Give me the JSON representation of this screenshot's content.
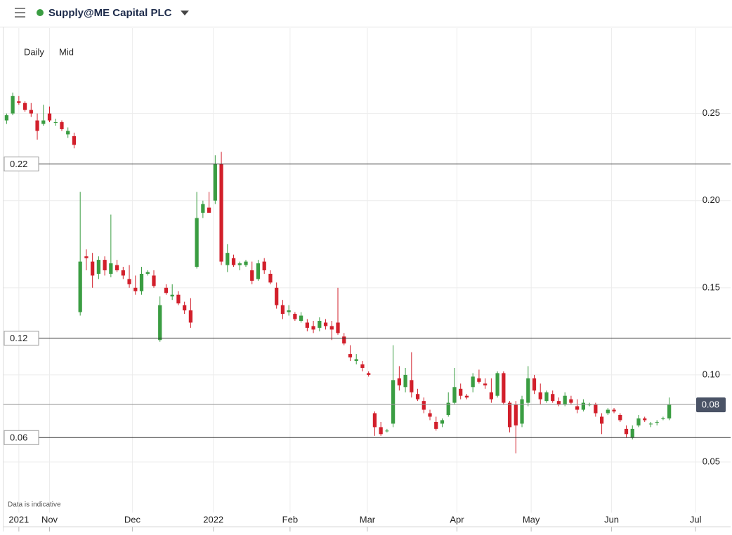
{
  "header": {
    "title": "Supply@ME Capital PLC"
  },
  "toolbar": {
    "interval": "Daily",
    "price_type": "Mid"
  },
  "chart_data": {
    "type": "candlestick",
    "note": "Data is indicative",
    "up_color": "#3a9d42",
    "down_color": "#d21f2b",
    "xlim": [
      -0.5,
      118
    ],
    "xticks": [
      {
        "value": 2,
        "label": "2021"
      },
      {
        "value": 7,
        "label": "Nov"
      },
      {
        "value": 20.5,
        "label": "Dec"
      },
      {
        "value": 33.7,
        "label": "2022"
      },
      {
        "value": 46.2,
        "label": "Feb"
      },
      {
        "value": 58.8,
        "label": "Mar"
      },
      {
        "value": 73.4,
        "label": "Apr"
      },
      {
        "value": 85.5,
        "label": "May"
      },
      {
        "value": 98.6,
        "label": "Jun"
      },
      {
        "value": 112.3,
        "label": "Jul"
      }
    ],
    "ylim": [
      0.021,
      0.299
    ],
    "yticks": [
      0.05,
      {
        "value": 0.1,
        "label": "0.10"
      },
      0.15,
      {
        "value": 0.2,
        "label": "0.20"
      },
      0.25
    ],
    "grid": true,
    "levels": [
      {
        "value": 0.221,
        "label": "0.22"
      },
      {
        "value": 0.121,
        "label": "0.12"
      },
      {
        "value": 0.064,
        "label": "0.06"
      }
    ],
    "last_price": {
      "value": 0.083,
      "label": "0.08"
    },
    "candles": [
      {
        "open": 0.246,
        "high": 0.25,
        "low": 0.244,
        "close": 0.249
      },
      {
        "open": 0.25,
        "high": 0.262,
        "low": 0.249,
        "close": 0.26
      },
      {
        "open": 0.257,
        "high": 0.26,
        "low": 0.255,
        "close": 0.256
      },
      {
        "open": 0.256,
        "high": 0.257,
        "low": 0.251,
        "close": 0.252
      },
      {
        "open": 0.252,
        "high": 0.256,
        "low": 0.248,
        "close": 0.25
      },
      {
        "open": 0.246,
        "high": 0.25,
        "low": 0.235,
        "close": 0.24
      },
      {
        "open": 0.244,
        "high": 0.255,
        "low": 0.243,
        "close": 0.246
      },
      {
        "open": 0.25,
        "high": 0.254,
        "low": 0.245,
        "close": 0.246
      },
      {
        "open": 0.245,
        "high": 0.247,
        "low": 0.243,
        "close": 0.245
      },
      {
        "open": 0.245,
        "high": 0.246,
        "low": 0.24,
        "close": 0.241
      },
      {
        "open": 0.238,
        "high": 0.242,
        "low": 0.236,
        "close": 0.24
      },
      {
        "open": 0.237,
        "high": 0.239,
        "low": 0.23,
        "close": 0.232
      },
      {
        "open": 0.136,
        "high": 0.205,
        "low": 0.134,
        "close": 0.165
      },
      {
        "open": 0.168,
        "high": 0.172,
        "low": 0.16,
        "close": 0.167
      },
      {
        "open": 0.165,
        "high": 0.17,
        "low": 0.15,
        "close": 0.157
      },
      {
        "open": 0.158,
        "high": 0.168,
        "low": 0.155,
        "close": 0.166
      },
      {
        "open": 0.166,
        "high": 0.168,
        "low": 0.157,
        "close": 0.16
      },
      {
        "open": 0.158,
        "high": 0.192,
        "low": 0.156,
        "close": 0.164
      },
      {
        "open": 0.163,
        "high": 0.166,
        "low": 0.159,
        "close": 0.16
      },
      {
        "open": 0.16,
        "high": 0.162,
        "low": 0.155,
        "close": 0.157
      },
      {
        "open": 0.155,
        "high": 0.163,
        "low": 0.15,
        "close": 0.152
      },
      {
        "open": 0.15,
        "high": 0.157,
        "low": 0.146,
        "close": 0.148
      },
      {
        "open": 0.148,
        "high": 0.162,
        "low": 0.146,
        "close": 0.158
      },
      {
        "open": 0.158,
        "high": 0.16,
        "low": 0.157,
        "close": 0.159
      },
      {
        "open": 0.157,
        "high": 0.16,
        "low": 0.15,
        "close": 0.151
      },
      {
        "open": 0.12,
        "high": 0.145,
        "low": 0.119,
        "close": 0.14
      },
      {
        "open": 0.15,
        "high": 0.152,
        "low": 0.146,
        "close": 0.147
      },
      {
        "open": 0.145,
        "high": 0.152,
        "low": 0.143,
        "close": 0.146
      },
      {
        "open": 0.146,
        "high": 0.148,
        "low": 0.14,
        "close": 0.141
      },
      {
        "open": 0.14,
        "high": 0.142,
        "low": 0.135,
        "close": 0.137
      },
      {
        "open": 0.137,
        "high": 0.144,
        "low": 0.127,
        "close": 0.13
      },
      {
        "open": 0.162,
        "high": 0.205,
        "low": 0.161,
        "close": 0.19
      },
      {
        "open": 0.193,
        "high": 0.2,
        "low": 0.19,
        "close": 0.198
      },
      {
        "open": 0.196,
        "high": 0.205,
        "low": 0.193,
        "close": 0.193
      },
      {
        "open": 0.2,
        "high": 0.226,
        "low": 0.198,
        "close": 0.221
      },
      {
        "open": 0.221,
        "high": 0.228,
        "low": 0.163,
        "close": 0.165
      },
      {
        "open": 0.163,
        "high": 0.175,
        "low": 0.159,
        "close": 0.17
      },
      {
        "open": 0.167,
        "high": 0.169,
        "low": 0.162,
        "close": 0.163
      },
      {
        "open": 0.163,
        "high": 0.165,
        "low": 0.16,
        "close": 0.164
      },
      {
        "open": 0.163,
        "high": 0.166,
        "low": 0.162,
        "close": 0.165
      },
      {
        "open": 0.16,
        "high": 0.165,
        "low": 0.152,
        "close": 0.154
      },
      {
        "open": 0.155,
        "high": 0.166,
        "low": 0.154,
        "close": 0.164
      },
      {
        "open": 0.165,
        "high": 0.167,
        "low": 0.158,
        "close": 0.16
      },
      {
        "open": 0.158,
        "high": 0.16,
        "low": 0.152,
        "close": 0.153
      },
      {
        "open": 0.15,
        "high": 0.153,
        "low": 0.138,
        "close": 0.14
      },
      {
        "open": 0.14,
        "high": 0.143,
        "low": 0.132,
        "close": 0.135
      },
      {
        "open": 0.136,
        "high": 0.14,
        "low": 0.134,
        "close": 0.137
      },
      {
        "open": 0.135,
        "high": 0.136,
        "low": 0.131,
        "close": 0.132
      },
      {
        "open": 0.131,
        "high": 0.136,
        "low": 0.13,
        "close": 0.134
      },
      {
        "open": 0.13,
        "high": 0.132,
        "low": 0.125,
        "close": 0.127
      },
      {
        "open": 0.128,
        "high": 0.131,
        "low": 0.124,
        "close": 0.126
      },
      {
        "open": 0.127,
        "high": 0.133,
        "low": 0.125,
        "close": 0.131
      },
      {
        "open": 0.13,
        "high": 0.132,
        "low": 0.126,
        "close": 0.128
      },
      {
        "open": 0.128,
        "high": 0.131,
        "low": 0.12,
        "close": 0.126
      },
      {
        "open": 0.13,
        "high": 0.15,
        "low": 0.123,
        "close": 0.124
      },
      {
        "open": 0.122,
        "high": 0.124,
        "low": 0.117,
        "close": 0.118
      },
      {
        "open": 0.112,
        "high": 0.117,
        "low": 0.108,
        "close": 0.11
      },
      {
        "open": 0.108,
        "high": 0.112,
        "low": 0.106,
        "close": 0.109
      },
      {
        "open": 0.106,
        "high": 0.108,
        "low": 0.102,
        "close": 0.104
      },
      {
        "open": 0.101,
        "high": 0.102,
        "low": 0.099,
        "close": 0.1
      },
      {
        "open": 0.078,
        "high": 0.079,
        "low": 0.065,
        "close": 0.07
      },
      {
        "open": 0.07,
        "high": 0.073,
        "low": 0.065,
        "close": 0.066
      },
      {
        "open": 0.068,
        "high": 0.069,
        "low": 0.067,
        "close": 0.068
      },
      {
        "open": 0.072,
        "high": 0.117,
        "low": 0.07,
        "close": 0.097
      },
      {
        "open": 0.098,
        "high": 0.105,
        "low": 0.091,
        "close": 0.094
      },
      {
        "open": 0.093,
        "high": 0.104,
        "low": 0.09,
        "close": 0.1
      },
      {
        "open": 0.097,
        "high": 0.113,
        "low": 0.087,
        "close": 0.09
      },
      {
        "open": 0.089,
        "high": 0.092,
        "low": 0.085,
        "close": 0.086
      },
      {
        "open": 0.085,
        "high": 0.087,
        "low": 0.078,
        "close": 0.08
      },
      {
        "open": 0.078,
        "high": 0.08,
        "low": 0.074,
        "close": 0.076
      },
      {
        "open": 0.073,
        "high": 0.076,
        "low": 0.068,
        "close": 0.069
      },
      {
        "open": 0.072,
        "high": 0.075,
        "low": 0.07,
        "close": 0.074
      },
      {
        "open": 0.077,
        "high": 0.09,
        "low": 0.076,
        "close": 0.084
      },
      {
        "open": 0.084,
        "high": 0.104,
        "low": 0.083,
        "close": 0.093
      },
      {
        "open": 0.092,
        "high": 0.095,
        "low": 0.086,
        "close": 0.088
      },
      {
        "open": 0.088,
        "high": 0.089,
        "low": 0.086,
        "close": 0.087
      },
      {
        "open": 0.093,
        "high": 0.101,
        "low": 0.09,
        "close": 0.099
      },
      {
        "open": 0.098,
        "high": 0.103,
        "low": 0.095,
        "close": 0.096
      },
      {
        "open": 0.095,
        "high": 0.098,
        "low": 0.092,
        "close": 0.094
      },
      {
        "open": 0.09,
        "high": 0.098,
        "low": 0.084,
        "close": 0.086
      },
      {
        "open": 0.088,
        "high": 0.102,
        "low": 0.087,
        "close": 0.101
      },
      {
        "open": 0.101,
        "high": 0.102,
        "low": 0.083,
        "close": 0.084
      },
      {
        "open": 0.084,
        "high": 0.085,
        "low": 0.067,
        "close": 0.07
      },
      {
        "open": 0.083,
        "high": 0.085,
        "low": 0.055,
        "close": 0.071
      },
      {
        "open": 0.072,
        "high": 0.088,
        "low": 0.07,
        "close": 0.086
      },
      {
        "open": 0.084,
        "high": 0.105,
        "low": 0.082,
        "close": 0.098
      },
      {
        "open": 0.098,
        "high": 0.1,
        "low": 0.089,
        "close": 0.091
      },
      {
        "open": 0.09,
        "high": 0.095,
        "low": 0.083,
        "close": 0.086
      },
      {
        "open": 0.085,
        "high": 0.091,
        "low": 0.084,
        "close": 0.09
      },
      {
        "open": 0.089,
        "high": 0.091,
        "low": 0.084,
        "close": 0.085
      },
      {
        "open": 0.085,
        "high": 0.087,
        "low": 0.082,
        "close": 0.083
      },
      {
        "open": 0.083,
        "high": 0.09,
        "low": 0.082,
        "close": 0.088
      },
      {
        "open": 0.086,
        "high": 0.088,
        "low": 0.083,
        "close": 0.084
      },
      {
        "open": 0.082,
        "high": 0.086,
        "low": 0.078,
        "close": 0.08
      },
      {
        "open": 0.08,
        "high": 0.086,
        "low": 0.079,
        "close": 0.084
      },
      {
        "open": 0.083,
        "high": 0.084,
        "low": 0.082,
        "close": 0.083
      },
      {
        "open": 0.083,
        "high": 0.084,
        "low": 0.076,
        "close": 0.078
      },
      {
        "open": 0.076,
        "high": 0.078,
        "low": 0.066,
        "close": 0.072
      },
      {
        "open": 0.078,
        "high": 0.081,
        "low": 0.077,
        "close": 0.08
      },
      {
        "open": 0.08,
        "high": 0.081,
        "low": 0.078,
        "close": 0.079
      },
      {
        "open": 0.077,
        "high": 0.078,
        "low": 0.073,
        "close": 0.074
      },
      {
        "open": 0.069,
        "high": 0.071,
        "low": 0.064,
        "close": 0.066
      },
      {
        "open": 0.064,
        "high": 0.071,
        "low": 0.063,
        "close": 0.069
      },
      {
        "open": 0.071,
        "high": 0.077,
        "low": 0.07,
        "close": 0.075
      },
      {
        "open": 0.075,
        "high": 0.076,
        "low": 0.073,
        "close": 0.074
      },
      {
        "open": 0.072,
        "high": 0.073,
        "low": 0.07,
        "close": 0.072
      },
      {
        "open": 0.073,
        "high": 0.074,
        "low": 0.071,
        "close": 0.073
      },
      {
        "open": 0.075,
        "high": 0.076,
        "low": 0.074,
        "close": 0.075
      },
      {
        "open": 0.075,
        "high": 0.087,
        "low": 0.074,
        "close": 0.083
      }
    ]
  }
}
